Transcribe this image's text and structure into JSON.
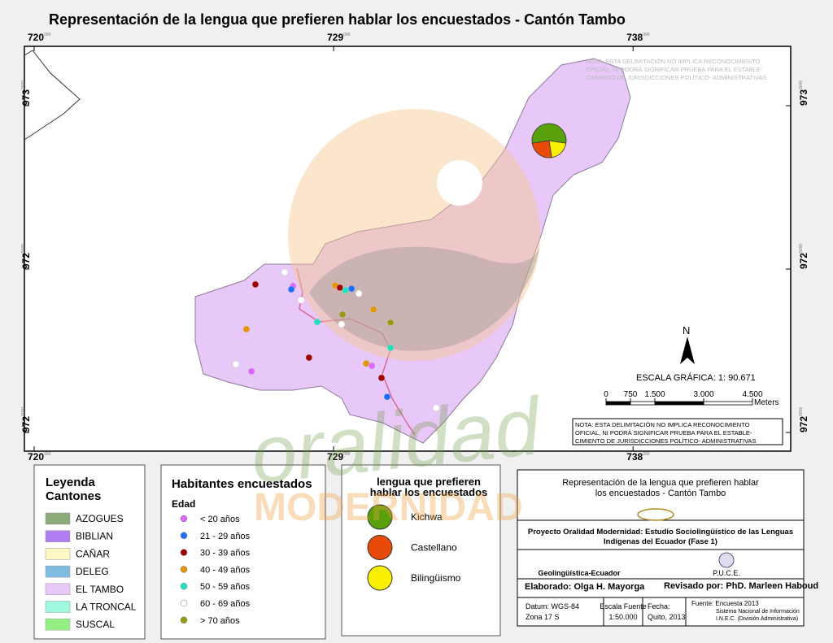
{
  "title": "Representación de la lengua que prefieren hablar  los encuestados - Cantón Tambo",
  "map": {
    "xticks": [
      {
        "value": 720000,
        "label": "720",
        "sup": "000"
      },
      {
        "value": 729000,
        "label": "729",
        "sup": "000"
      },
      {
        "value": 738000,
        "label": "738",
        "sup": "000"
      }
    ],
    "yticks": [
      {
        "value": 9730000,
        "label": "973",
        "sup": "0000"
      },
      {
        "value": 9725000,
        "label": "972",
        "sup": "5000"
      },
      {
        "value": 9720000,
        "label": "972",
        "sup": "0000"
      }
    ],
    "note": [
      "NOTA: ESTA DELIMITACIÓN NO IMPLICA  RECONOCIMIENTO",
      "OFICIAL, NI PODRÁ SIGNIFICAR  PRUEBA PARA EL ESTABLE-",
      "CIMIENTO DE  JURISDICCIONES POLÍTICO- ADMINISTRATIVAS"
    ],
    "north": "N",
    "scale_title": "ESCALA GRÁFICA: 1: 90.671",
    "scale_ticks": [
      0,
      750,
      {
        "value": 1500,
        "label": "1.500"
      },
      {
        "value": 3000,
        "label": "3.000"
      },
      {
        "value": 4500,
        "label": "4.500"
      }
    ],
    "scale_unit": "Meters",
    "pie": {
      "values": [
        55,
        25,
        20
      ]
    },
    "points": [
      {
        "e": 727780,
        "n": 9724480,
        "group": 0
      },
      {
        "e": 727730,
        "n": 9724380,
        "group": 1
      },
      {
        "e": 726650,
        "n": 9724530,
        "group": 2
      },
      {
        "e": 727530,
        "n": 9724900,
        "group": 5
      },
      {
        "e": 728020,
        "n": 9724050,
        "group": 5
      },
      {
        "e": 729050,
        "n": 9724500,
        "group": 3
      },
      {
        "e": 729190,
        "n": 9724430,
        "group": 2
      },
      {
        "e": 729360,
        "n": 9724350,
        "group": 4
      },
      {
        "e": 729540,
        "n": 9724400,
        "group": 1
      },
      {
        "e": 729760,
        "n": 9724250,
        "group": 5
      },
      {
        "e": 729270,
        "n": 9723610,
        "group": 6
      },
      {
        "e": 730200,
        "n": 9723760,
        "group": 3
      },
      {
        "e": 728510,
        "n": 9723380,
        "group": 4
      },
      {
        "e": 729240,
        "n": 9723310,
        "group": 5
      },
      {
        "e": 730710,
        "n": 9723360,
        "group": 6
      },
      {
        "e": 726380,
        "n": 9723160,
        "group": 3
      },
      {
        "e": 728260,
        "n": 9722290,
        "group": 2
      },
      {
        "e": 726060,
        "n": 9722090,
        "group": 5
      },
      {
        "e": 726530,
        "n": 9721870,
        "group": 0
      },
      {
        "e": 729980,
        "n": 9722110,
        "group": 3
      },
      {
        "e": 730150,
        "n": 9722040,
        "group": 0
      },
      {
        "e": 730710,
        "n": 9722590,
        "group": 4
      },
      {
        "e": 730440,
        "n": 9721670,
        "group": 2
      },
      {
        "e": 730610,
        "n": 9721090,
        "group": 1
      },
      {
        "e": 732080,
        "n": 9720750,
        "group": 5
      }
    ]
  },
  "watermark": [
    "oralidad",
    "MODERNIDAD"
  ],
  "legend_cantones": {
    "title": [
      "Leyenda",
      "Cantones"
    ],
    "items": [
      {
        "name": "AZOGUES",
        "color": "#8aab78"
      },
      {
        "name": "BIBLIAN",
        "color": "#b07ef0"
      },
      {
        "name": "CAÑAR",
        "color": "#fff8c4"
      },
      {
        "name": "DELEG",
        "color": "#80bce2"
      },
      {
        "name": "EL TAMBO",
        "color": "#e8c8f8"
      },
      {
        "name": "LA TRONCAL",
        "color": "#a0f8e0"
      },
      {
        "name": "SUSCAL",
        "color": "#94f084"
      }
    ]
  },
  "legend_age": {
    "title": "Habitantes encuestados",
    "subtitle": "Edad",
    "items": [
      {
        "name": "< 20 años",
        "color": "#e066ff"
      },
      {
        "name": "21 - 29 años",
        "color": "#1e6fff"
      },
      {
        "name": "30 - 39 años",
        "color": "#a00000"
      },
      {
        "name": "40 - 49 años",
        "color": "#e69500"
      },
      {
        "name": "50 - 59 años",
        "color": "#20e0c0"
      },
      {
        "name": "60 - 69 años",
        "color": "#ffffff"
      },
      {
        "name": "> 70 años",
        "color": "#9a9a10"
      }
    ]
  },
  "legend_language": {
    "title": [
      "lengua que  prefieren",
      "hablar los encuestados"
    ],
    "items": [
      {
        "name": "Kichwa",
        "color": "#5aa00a"
      },
      {
        "name": "Castellano",
        "color": "#e84a0a"
      },
      {
        "name": "Bilingüismo",
        "color": "#f8f000"
      }
    ]
  },
  "title_block": {
    "title": [
      "Representación de la lengua que prefieren hablar",
      "los encuestados - Cantón Tambo"
    ],
    "project": [
      "Proyecto Oralidad Modernidad: Estudio Sociolingüístico de las Lenguas",
      "Indígenas del Ecuador  (Fase 1)"
    ],
    "left_logo": "Geolingüística-Ecuador",
    "right_logo": "P.U.C.E.",
    "author": "Elaborado: Olga H. Mayorga",
    "reviewer": "Revisado por: PhD. Marleen Haboud",
    "datum": [
      "Datum: WGS-84",
      "Zona 17 S"
    ],
    "scale": [
      "Escala Fuente",
      "1:50.000"
    ],
    "date": [
      "Fecha:",
      "Quito, 2013"
    ],
    "source": [
      "Fuente: Encuesta 2013",
      "Sistema Nacional de Información",
      "I.N.E.C. (División Administrativa)"
    ]
  }
}
